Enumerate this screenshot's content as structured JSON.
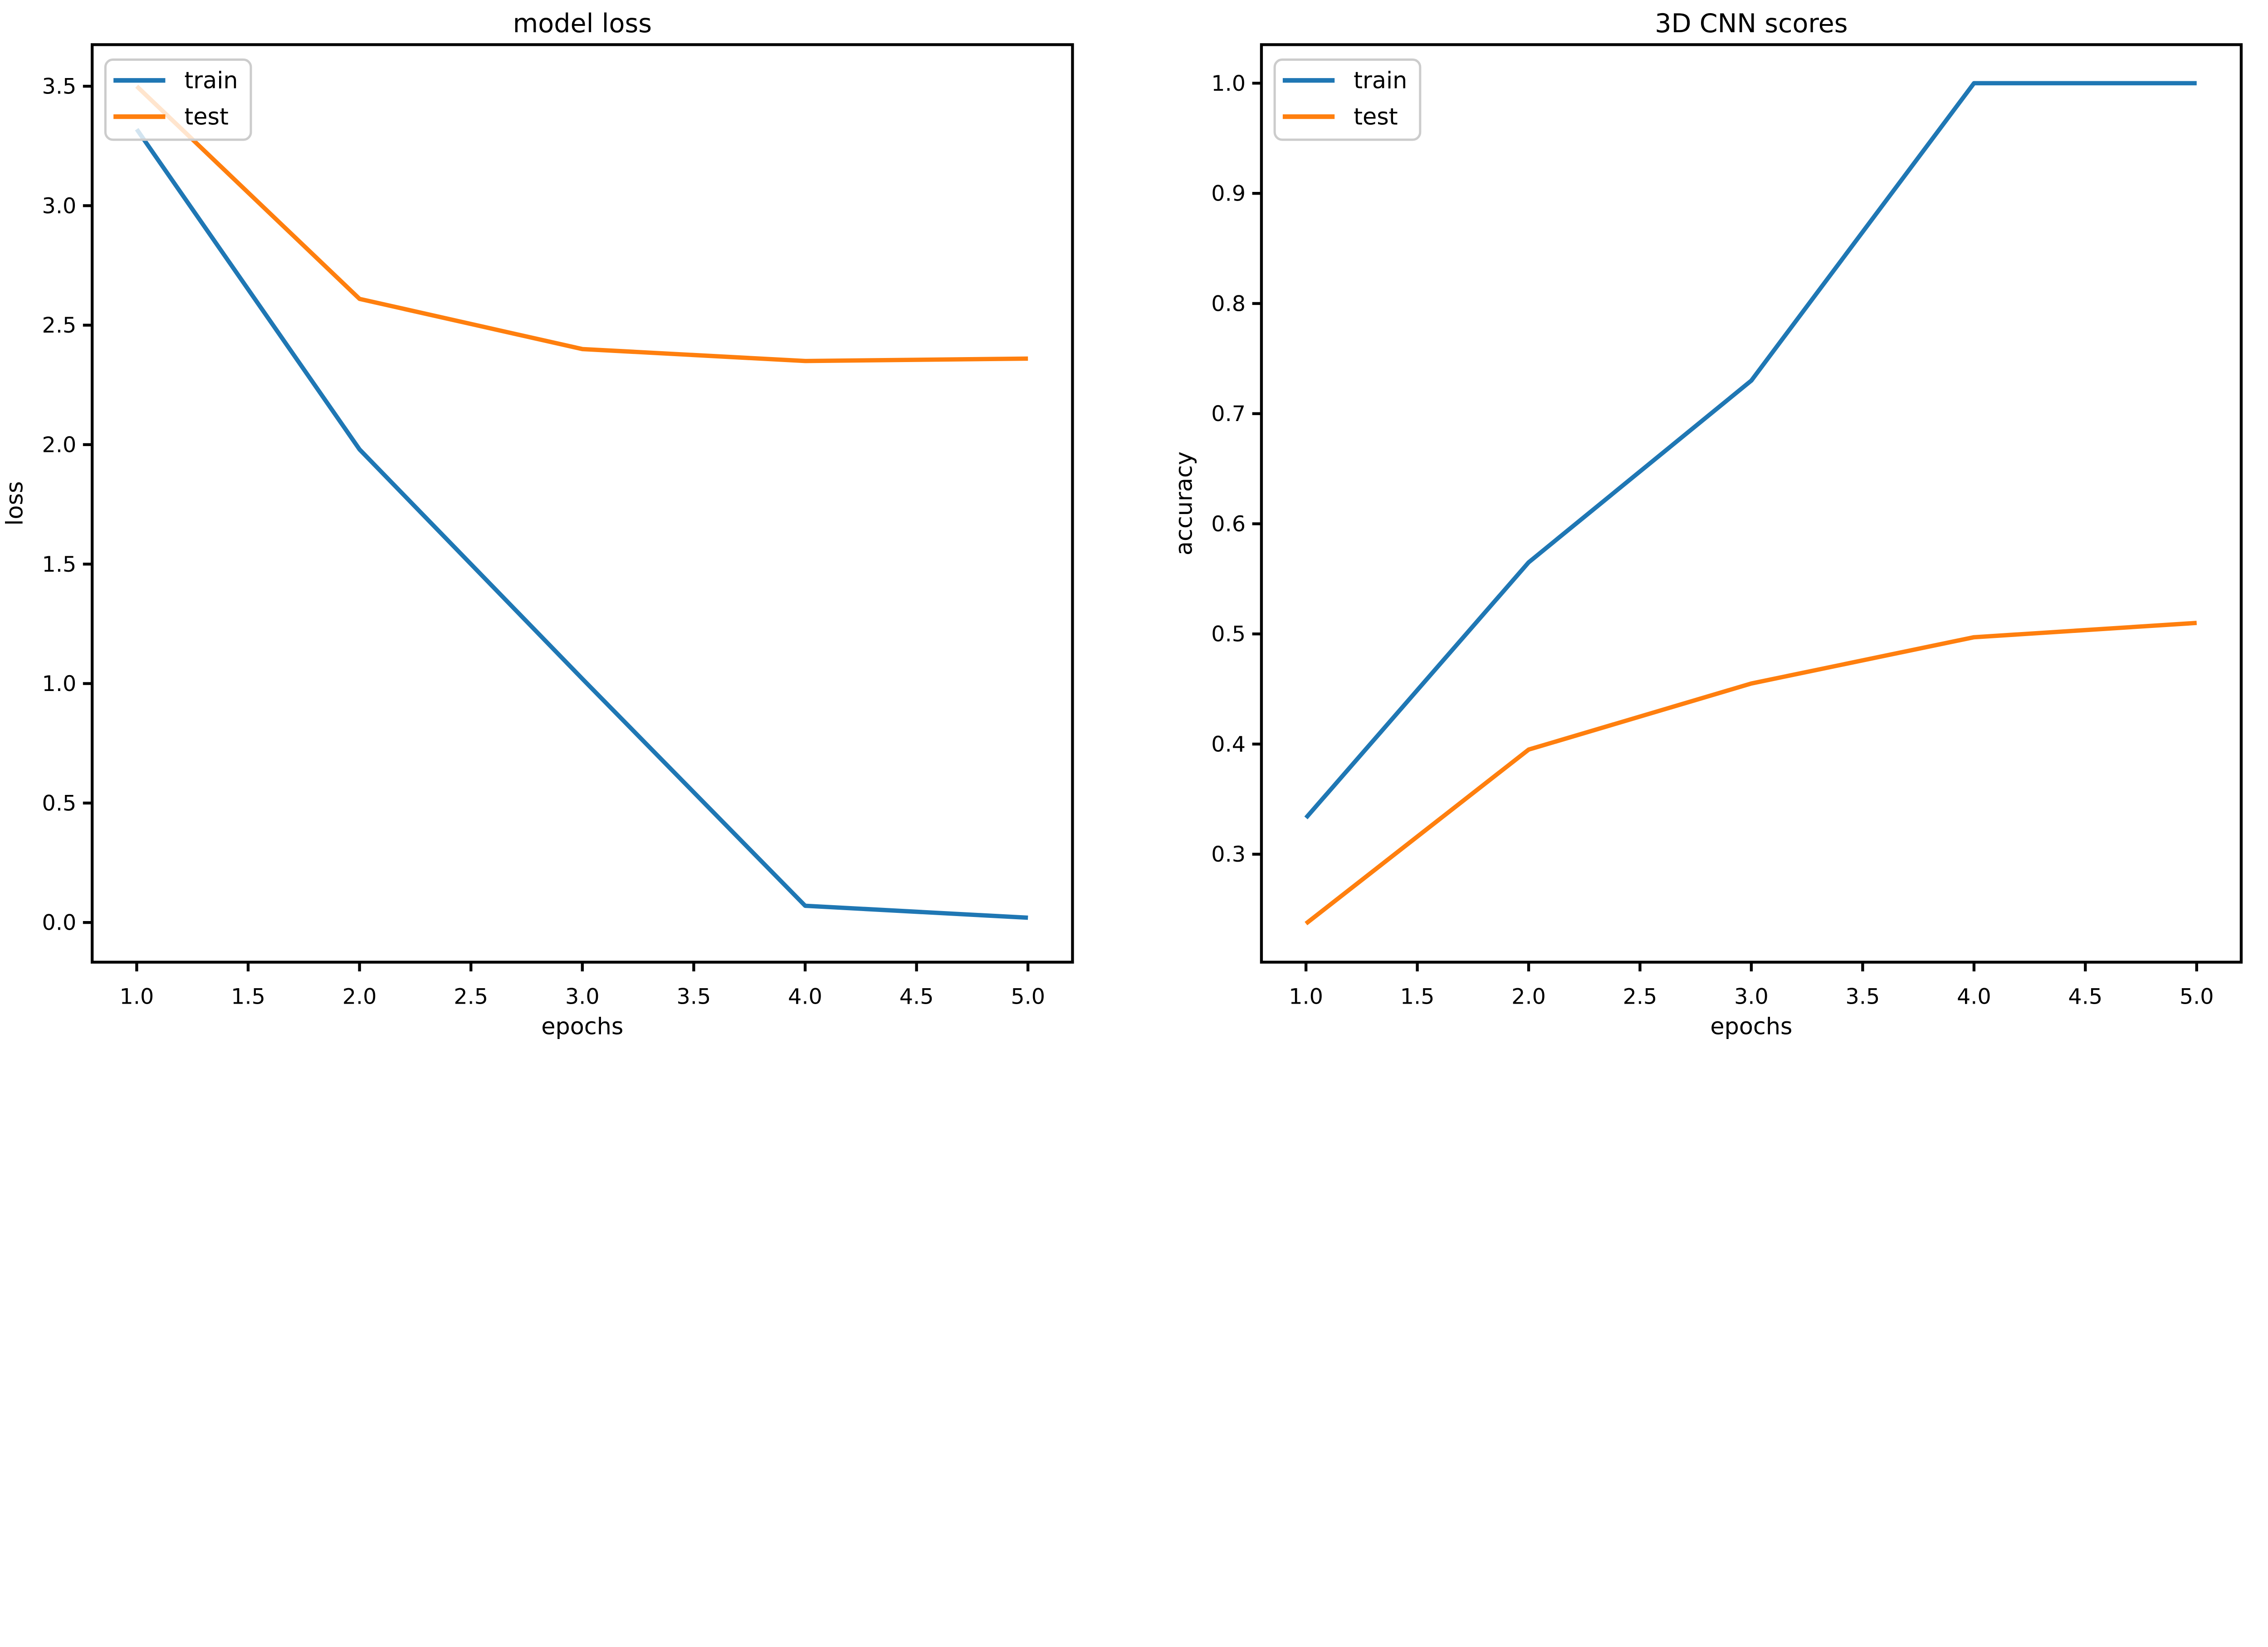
{
  "figure": {
    "background_color": "#ffffff",
    "frame_color": "#000000",
    "text_color": "#000000",
    "legend_border_color": "#cccccc"
  },
  "chart_data": [
    {
      "type": "line",
      "title": "model loss",
      "xlabel": "epochs",
      "ylabel": "loss",
      "x": [
        1,
        2,
        3,
        4,
        5
      ],
      "series": [
        {
          "name": "train",
          "color": "#1f77b4",
          "values": [
            3.32,
            1.98,
            1.02,
            0.07,
            0.02
          ]
        },
        {
          "name": "test",
          "color": "#ff7f0e",
          "values": [
            3.5,
            2.61,
            2.4,
            2.35,
            2.36
          ]
        }
      ],
      "xlim": [
        0.8,
        5.2
      ],
      "ylim": [
        -0.166,
        3.674
      ],
      "xticks": [
        1.0,
        1.5,
        2.0,
        2.5,
        3.0,
        3.5,
        4.0,
        4.5,
        5.0
      ],
      "yticks": [
        0.0,
        0.5,
        1.0,
        1.5,
        2.0,
        2.5,
        3.0,
        3.5
      ],
      "legend": {
        "entries": [
          "train",
          "test"
        ],
        "position": "upper-left"
      },
      "grid": false
    },
    {
      "type": "line",
      "title": "3D CNN scores",
      "xlabel": "epochs",
      "ylabel": "accuracy",
      "x": [
        1,
        2,
        3,
        4,
        5
      ],
      "series": [
        {
          "name": "train",
          "color": "#1f77b4",
          "values": [
            0.333,
            0.565,
            0.73,
            1.0,
            1.0
          ]
        },
        {
          "name": "test",
          "color": "#ff7f0e",
          "values": [
            0.237,
            0.395,
            0.455,
            0.497,
            0.51
          ]
        }
      ],
      "xlim": [
        0.8,
        5.2
      ],
      "ylim": [
        0.202,
        1.035
      ],
      "xticks": [
        1.0,
        1.5,
        2.0,
        2.5,
        3.0,
        3.5,
        4.0,
        4.5,
        5.0
      ],
      "yticks": [
        0.3,
        0.4,
        0.5,
        0.6,
        0.7,
        0.8,
        0.9,
        1.0
      ],
      "legend": {
        "entries": [
          "train",
          "test"
        ],
        "position": "upper-left"
      },
      "grid": false
    }
  ]
}
